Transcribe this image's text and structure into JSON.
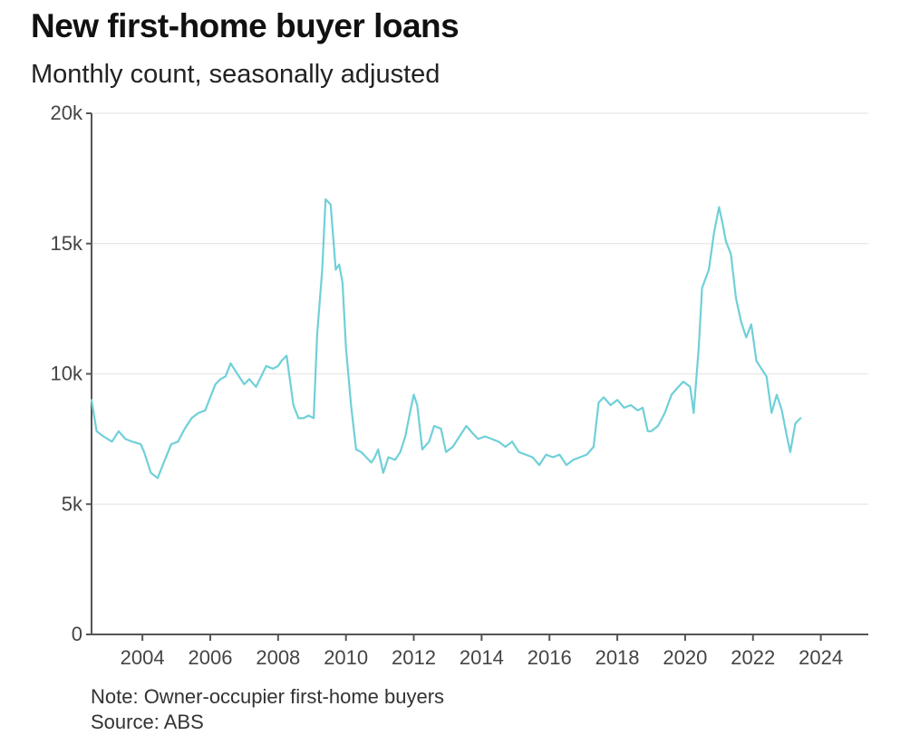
{
  "title": "New first-home buyer loans",
  "subtitle": "Monthly count, seasonally adjusted",
  "note": "Note: Owner-occupier first-home buyers",
  "source": "Source: ABS",
  "chart_data": {
    "type": "line",
    "title": "New first-home buyer loans",
    "subtitle": "Monthly count, seasonally adjusted",
    "xlabel": "",
    "ylabel": "",
    "xlim": [
      2002.5,
      2025.4
    ],
    "ylim": [
      0,
      20000
    ],
    "grid": true,
    "line_color": "#6fd0d8",
    "y_ticks": [
      0,
      5000,
      10000,
      15000,
      20000
    ],
    "y_tick_labels": [
      "0",
      "5k",
      "10k",
      "15k",
      "20k"
    ],
    "x_ticks": [
      2004,
      2006,
      2008,
      2010,
      2012,
      2014,
      2016,
      2018,
      2020,
      2022,
      2024
    ],
    "x_tick_labels": [
      "2004",
      "2006",
      "2008",
      "2010",
      "2012",
      "2014",
      "2016",
      "2018",
      "2020",
      "2022",
      "2024"
    ],
    "series": [
      {
        "x": [
          2002.5,
          2002.65,
          2002.85,
          2003.1,
          2003.3,
          2003.5,
          2003.7,
          2003.95,
          2004.05,
          2004.25,
          2004.45,
          2004.6,
          2004.85,
          2005.05,
          2005.25,
          2005.45,
          2005.65,
          2005.85,
          2006.0,
          2006.15,
          2006.3,
          2006.45,
          2006.6,
          2006.8,
          2007.0,
          2007.15,
          2007.35,
          2007.5,
          2007.65,
          2007.85,
          2008.0,
          2008.1,
          2008.25,
          2008.45,
          2008.6,
          2008.75,
          2008.9,
          2009.05,
          2009.15,
          2009.3,
          2009.4,
          2009.55,
          2009.7,
          2009.8,
          2009.9,
          2010.0,
          2010.15,
          2010.3,
          2010.45,
          2010.6,
          2010.75,
          2010.85,
          2010.95,
          2011.1,
          2011.25,
          2011.45,
          2011.6,
          2011.75,
          2011.9,
          2012.0,
          2012.1,
          2012.25,
          2012.45,
          2012.6,
          2012.8,
          2012.95,
          2013.15,
          2013.35,
          2013.55,
          2013.75,
          2013.9,
          2014.1,
          2014.3,
          2014.5,
          2014.7,
          2014.9,
          2015.1,
          2015.3,
          2015.5,
          2015.7,
          2015.9,
          2016.1,
          2016.3,
          2016.5,
          2016.7,
          2016.9,
          2017.1,
          2017.3,
          2017.45,
          2017.6,
          2017.8,
          2018.0,
          2018.2,
          2018.4,
          2018.6,
          2018.75,
          2018.9,
          2019.0,
          2019.2,
          2019.4,
          2019.6,
          2019.8,
          2019.95,
          2020.15,
          2020.25,
          2020.4,
          2020.5,
          2020.7,
          2020.85,
          2021.0,
          2021.1,
          2021.2,
          2021.35,
          2021.5,
          2021.65,
          2021.8,
          2021.95,
          2022.1,
          2022.25,
          2022.4,
          2022.55,
          2022.7,
          2022.85,
          2023.0,
          2023.1,
          2023.25,
          2023.4
        ],
        "values": [
          9000,
          7800,
          7600,
          7400,
          7800,
          7500,
          7400,
          7300,
          7000,
          6200,
          6000,
          6500,
          7300,
          7400,
          7900,
          8300,
          8500,
          8600,
          9100,
          9600,
          9800,
          9900,
          10400,
          10000,
          9600,
          9800,
          9500,
          9900,
          10300,
          10200,
          10300,
          10500,
          10700,
          8800,
          8300,
          8300,
          8400,
          8300,
          11500,
          14000,
          16700,
          16500,
          14000,
          14200,
          13500,
          11000,
          8800,
          7100,
          7000,
          6800,
          6600,
          6800,
          7100,
          6200,
          6800,
          6700,
          7000,
          7600,
          8600,
          9200,
          8800,
          7100,
          7400,
          8000,
          7900,
          7000,
          7200,
          7600,
          8000,
          7700,
          7500,
          7600,
          7500,
          7400,
          7200,
          7400,
          7000,
          6900,
          6800,
          6500,
          6900,
          6800,
          6900,
          6500,
          6700,
          6800,
          6900,
          7200,
          8900,
          9100,
          8800,
          9000,
          8700,
          8800,
          8600,
          8700,
          7800,
          7800,
          8000,
          8500,
          9200,
          9500,
          9700,
          9500,
          8500,
          11000,
          13300,
          14000,
          15400,
          16400,
          15800,
          15100,
          14600,
          12900,
          12000,
          11400,
          11900,
          10500,
          10200,
          9900,
          8500,
          9200,
          8600,
          7600,
          7000,
          8100,
          8300
        ]
      }
    ]
  }
}
